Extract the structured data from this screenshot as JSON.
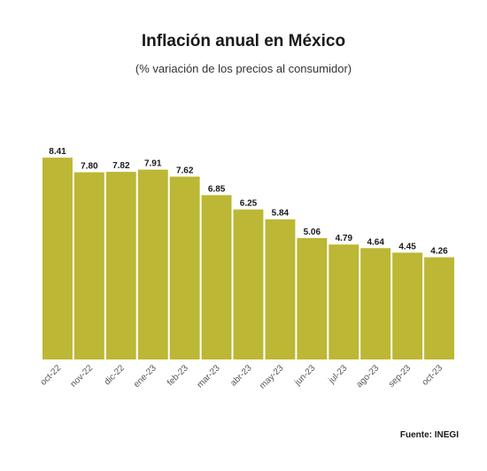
{
  "chart_data": {
    "type": "bar",
    "title": "Inflación anual en México",
    "subtitle": "(% variación de los precios al consumidor)",
    "categories": [
      "oct-22",
      "nov-22",
      "dic-22",
      "ene-23",
      "feb-23",
      "mar-23",
      "abr-23",
      "may-23",
      "jun-23",
      "jul-23",
      "ago-23",
      "sep-23",
      "oct-23"
    ],
    "values": [
      8.41,
      7.8,
      7.82,
      7.91,
      7.62,
      6.85,
      6.25,
      5.84,
      5.06,
      4.79,
      4.64,
      4.45,
      4.26
    ],
    "value_labels": [
      "8.41",
      "7.80",
      "7.82",
      "7.91",
      "7.62",
      "6.85",
      "6.25",
      "5.84",
      "5.06",
      "4.79",
      "4.64",
      "4.45",
      "4.26"
    ],
    "xlabel": "",
    "ylabel": "",
    "ylim": [
      0,
      9.5
    ],
    "grid": false,
    "bar_color": "#bcb734",
    "source": "Fuente: INEGI"
  }
}
